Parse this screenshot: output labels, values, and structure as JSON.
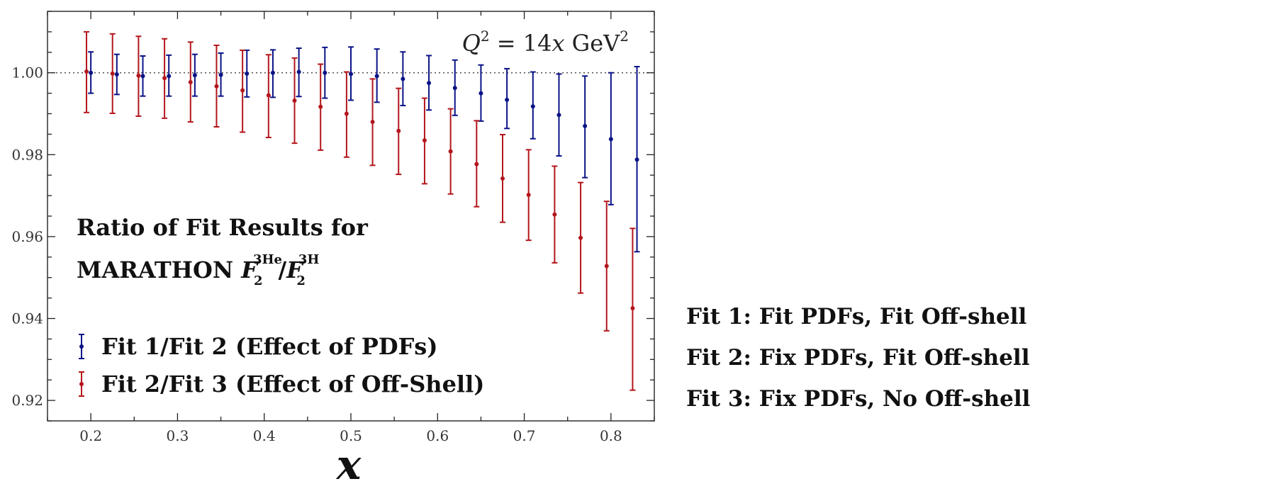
{
  "chart_data": {
    "type": "scatter",
    "xlabel": "x",
    "ylabel": "",
    "xlim": [
      0.15,
      0.85
    ],
    "ylim": [
      0.915,
      1.015
    ],
    "x_ticks": [
      0.2,
      0.3,
      0.4,
      0.5,
      0.6,
      0.7,
      0.8
    ],
    "x_tick_labels": [
      "0.2",
      "0.3",
      "0.4",
      "0.5",
      "0.6",
      "0.7",
      "0.8"
    ],
    "y_ticks": [
      0.92,
      0.94,
      0.96,
      0.98,
      1.0
    ],
    "y_tick_labels": [
      "0.92",
      "0.94",
      "0.96",
      "0.98",
      "1.00"
    ],
    "reference_line": {
      "y": 1.0,
      "style": "dotted"
    },
    "annotation": {
      "prefix": "Q",
      "superscript": "2",
      "middle": " = 14",
      "variable": "x",
      "unit": " GeV",
      "unit_superscript": "2"
    },
    "title_lines": [
      {
        "text": "Ratio of Fit Results for"
      },
      {
        "prefix": "MARATHON ",
        "f1": "F",
        "f1_sub": "2",
        "f1_sup": "3He",
        "slash": "/",
        "f2": "F",
        "f2_sub": "2",
        "f2_sup": "3H"
      }
    ],
    "legend_position": "lower-left",
    "series": [
      {
        "name": "Fit 1/Fit 2 (Effect of PDFs)",
        "color": "#0b1387",
        "x": [
          0.2,
          0.23,
          0.26,
          0.29,
          0.32,
          0.35,
          0.38,
          0.41,
          0.44,
          0.47,
          0.5,
          0.53,
          0.56,
          0.59,
          0.62,
          0.65,
          0.68,
          0.71,
          0.74,
          0.77,
          0.8,
          0.83
        ],
        "y": [
          1.0,
          0.9996,
          0.9992,
          0.9992,
          0.9994,
          0.9995,
          0.9998,
          1.0,
          1.0002,
          1.0,
          0.9997,
          0.9992,
          0.9985,
          0.9975,
          0.9963,
          0.995,
          0.9934,
          0.9918,
          0.9897,
          0.987,
          0.9838,
          0.9788
        ],
        "err_low": [
          0.005,
          0.0049,
          0.0049,
          0.0049,
          0.0051,
          0.0052,
          0.0057,
          0.006,
          0.006,
          0.0062,
          0.0064,
          0.0064,
          0.0065,
          0.0066,
          0.0067,
          0.0068,
          0.007,
          0.0079,
          0.01,
          0.0126,
          0.016,
          0.0225
        ],
        "err_high": [
          0.0051,
          0.0049,
          0.0049,
          0.0051,
          0.0051,
          0.0053,
          0.0057,
          0.0056,
          0.0058,
          0.0062,
          0.0066,
          0.0066,
          0.0066,
          0.0067,
          0.0068,
          0.0069,
          0.0076,
          0.0084,
          0.01,
          0.0122,
          0.0162,
          0.0227
        ]
      },
      {
        "name": "Fit 2/Fit 3 (Effect of Off-Shell)",
        "color": "#b3161c",
        "x": [
          0.195,
          0.225,
          0.255,
          0.285,
          0.315,
          0.345,
          0.375,
          0.405,
          0.435,
          0.465,
          0.495,
          0.525,
          0.555,
          0.585,
          0.615,
          0.645,
          0.675,
          0.705,
          0.735,
          0.765,
          0.795,
          0.825
        ],
        "y": [
          1.0003,
          0.9998,
          0.9993,
          0.9987,
          0.9977,
          0.9967,
          0.9957,
          0.9945,
          0.9932,
          0.9917,
          0.99,
          0.988,
          0.9858,
          0.9835,
          0.9808,
          0.9777,
          0.9742,
          0.9702,
          0.9654,
          0.9597,
          0.9528,
          0.9425
        ],
        "err_low": [
          0.01,
          0.0097,
          0.0099,
          0.0098,
          0.0097,
          0.0099,
          0.0102,
          0.0103,
          0.0104,
          0.0106,
          0.0106,
          0.0106,
          0.0106,
          0.0106,
          0.0104,
          0.0104,
          0.0107,
          0.0111,
          0.0118,
          0.0135,
          0.0158,
          0.02
        ],
        "err_high": [
          0.0097,
          0.0097,
          0.0096,
          0.0096,
          0.0098,
          0.01,
          0.0098,
          0.0099,
          0.0104,
          0.0104,
          0.0102,
          0.0105,
          0.0104,
          0.0103,
          0.0104,
          0.0106,
          0.0107,
          0.011,
          0.0118,
          0.0135,
          0.0158,
          0.0195
        ]
      }
    ]
  },
  "fit_notes": [
    "Fit 1: Fit PDFs, Fit Off-shell",
    "Fit 2: Fix PDFs, Fit Off-shell",
    "Fit 3: Fix PDFs, No Off-shell"
  ]
}
